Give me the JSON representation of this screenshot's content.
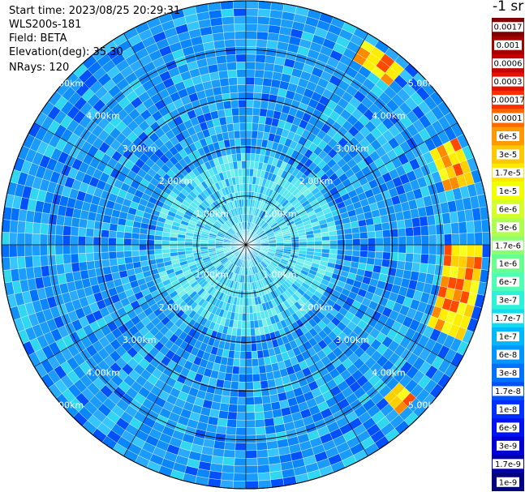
{
  "info": {
    "start_time": "Start time: 2023/08/25 20:29:31",
    "device": "WLS200s-181",
    "field": "Field: BETA",
    "elevation": "Elevation(deg): 35.30",
    "nrays": "NRays: 120"
  },
  "colorbar": {
    "unit": "-1 sr",
    "labels": [
      "0.0017",
      "0.001",
      "0.0006",
      "0.0003",
      "0.00017",
      "0.0001",
      "6e-5",
      "3e-5",
      "1.7e-5",
      "1e-5",
      "6e-6",
      "3e-6",
      "1.7e-6",
      "1e-6",
      "6e-7",
      "3e-7",
      "1.7e-7",
      "1e-7",
      "6e-8",
      "3e-8",
      "1.7e-8",
      "1e-8",
      "6e-9",
      "3e-9",
      "1.7e-9",
      "1e-9"
    ],
    "colors": [
      "#7f0000",
      "#a50000",
      "#c80000",
      "#e61000",
      "#ff3000",
      "#ff6a00",
      "#ff9a00",
      "#ffc800",
      "#ffe800",
      "#f2ff00",
      "#d4ff2a",
      "#b0ff50",
      "#8dff70",
      "#6bff92",
      "#4fffb4",
      "#2ef2d8",
      "#12dcf0",
      "#00b8ff",
      "#0096ff",
      "#0072ff",
      "#0050ff",
      "#0030ff",
      "#0012f0",
      "#0000d2",
      "#0000aa",
      "#000080"
    ]
  },
  "ppi": {
    "range_rings_km": [
      "1.00km",
      "2.00km",
      "3.00km",
      "4.00km",
      "5.00km"
    ],
    "max_range_km": 5.0,
    "nrays": 120,
    "spokes": 12,
    "ring_label_angles_deg": [
      -48,
      48,
      132,
      228
    ],
    "hot_sectors": [
      {
        "from_deg": 30,
        "to_deg": 40,
        "from_km": 4.3,
        "to_km": 4.8
      },
      {
        "from_deg": 62,
        "to_deg": 72,
        "from_km": 4.2,
        "to_km": 4.8
      },
      {
        "from_deg": 88,
        "to_deg": 112,
        "from_km": 4.1,
        "to_km": 4.9
      },
      {
        "from_deg": 132,
        "to_deg": 136,
        "from_km": 4.2,
        "to_km": 4.7
      }
    ]
  }
}
